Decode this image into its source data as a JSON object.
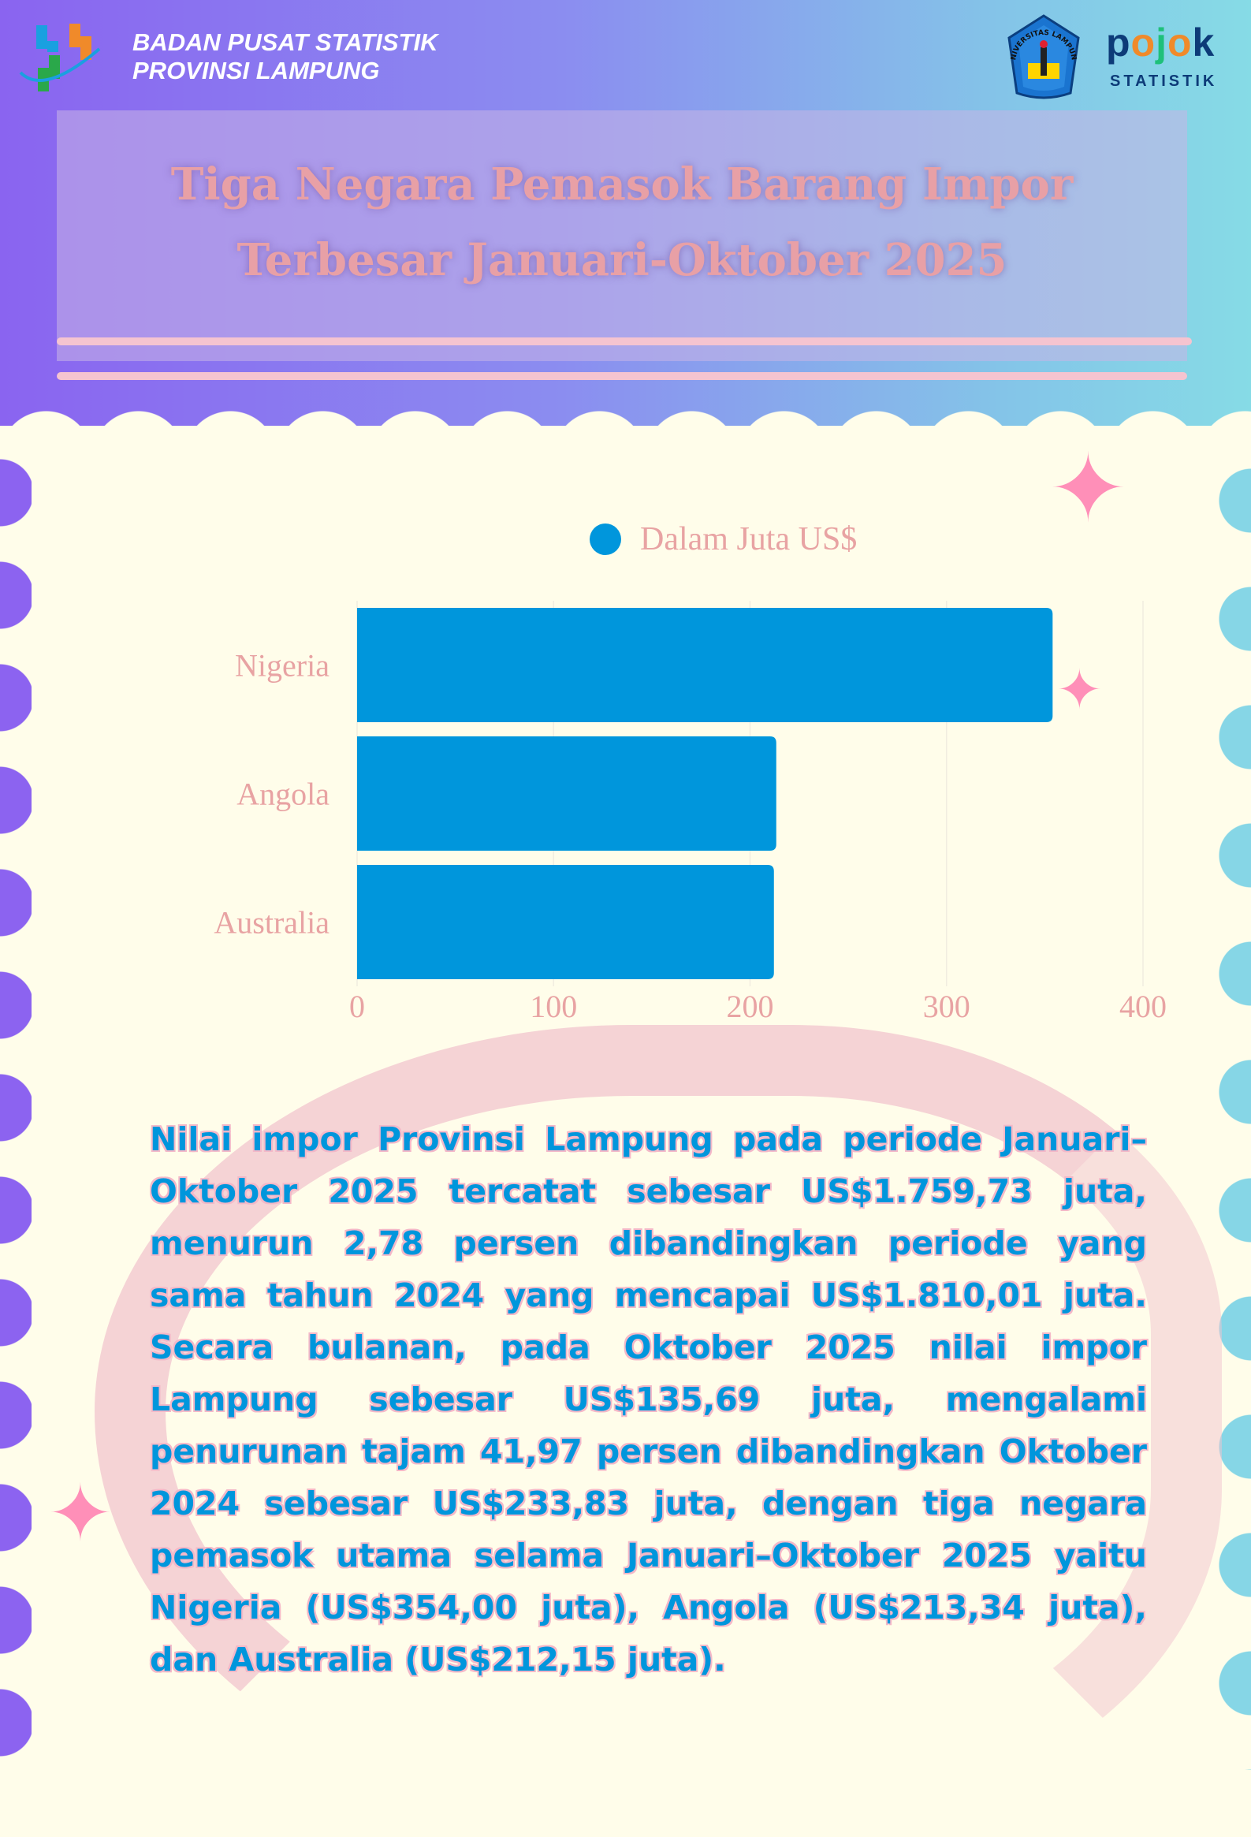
{
  "header": {
    "org_line1": "BADAN PUSAT STATISTIK",
    "org_line2": "PROVINSI LAMPUNG",
    "unila_logo_text": "UNIVERSITAS LAMPUNG",
    "pojok_logo": "pojok",
    "pojok_sub": "STATISTIK"
  },
  "title": {
    "line1": "Tiga Negara Pemasok Barang Impor",
    "line2": "Terbesar Januari-Oktober 2025"
  },
  "colors": {
    "bar": "#0096dc",
    "text_pink": "#e8a3a3",
    "background": "#fffdea"
  },
  "chart_data": {
    "type": "bar",
    "orientation": "horizontal",
    "categories": [
      "Nigeria",
      "Angola",
      "Australia"
    ],
    "series": [
      {
        "name": "Dalam Juta US$",
        "values": [
          354.0,
          213.34,
          212.15
        ]
      }
    ],
    "xlim": [
      0,
      400
    ],
    "xticks": [
      "0",
      "100",
      "200",
      "300",
      "400"
    ],
    "grid": true,
    "legend": "top"
  },
  "paragraph": [
    "Nilai impor Provinsi Lampung pada periode Januari–",
    "Oktober 2025 tercatat sebesar US$1.759,73 juta,",
    "menurun 2,78 persen dibandingkan periode yang",
    "sama tahun 2024 yang mencapai US$1.810,01 juta.",
    "Secara bulanan, pada Oktober 2025 nilai impor",
    "Lampung sebesar US$135,69 juta, mengalami",
    "penurunan tajam 41,97 persen dibandingkan Oktober",
    "2024 sebesar US$233,83 juta, dengan tiga negara",
    "pemasok utama selama Januari–Oktober 2025 yaitu",
    "Nigeria (US$354,00 juta), Angola (US$213,34 juta),",
    "dan Australia (US$212,15 juta)."
  ]
}
